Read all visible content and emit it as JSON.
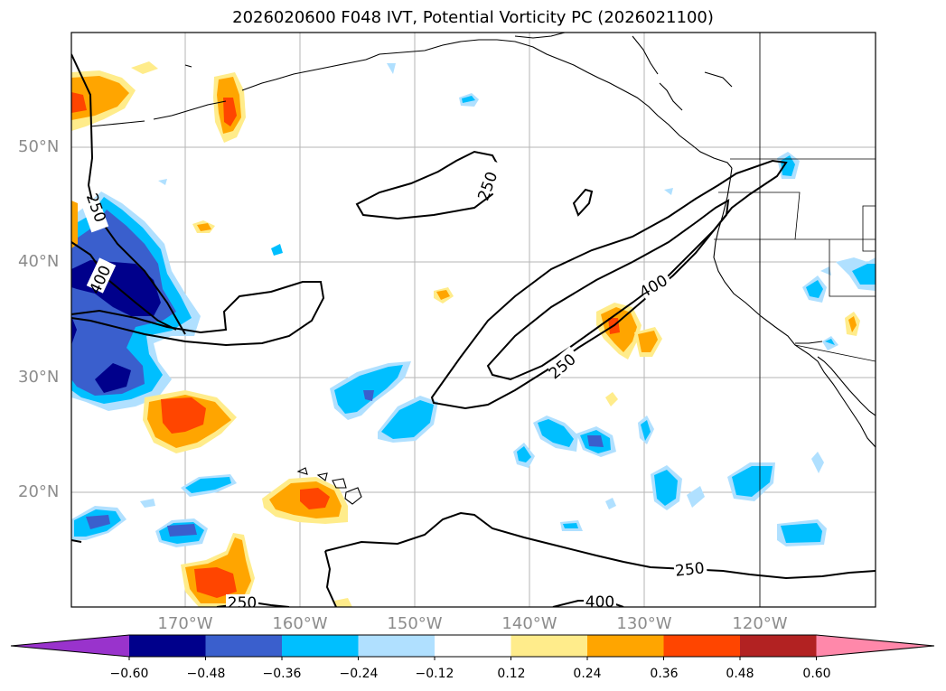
{
  "title": "2026020600 F048 IVT, Potential Vorticity PC (2026021100)",
  "lat_labels": [
    "50°N",
    "40°N",
    "30°N",
    "20°N"
  ],
  "lon_labels": [
    "170°W",
    "160°W",
    "150°W",
    "140°W",
    "130°W",
    "120°W"
  ],
  "contour_labels": [
    "250",
    "250",
    "400",
    "400",
    "250",
    "250",
    "250",
    "400"
  ],
  "colorbar": {
    "ticks": [
      "−0.60",
      "−0.48",
      "−0.36",
      "−0.24",
      "−0.12",
      "0.12",
      "0.24",
      "0.36",
      "0.48",
      "0.60"
    ],
    "colors": [
      "#9933cc",
      "#00008b",
      "#3a5fcd",
      "#00bfff",
      "#b0e0ff",
      "#ffffff",
      "#ffec8b",
      "#ffa500",
      "#ff4500",
      "#b22222",
      "#ff88aa"
    ]
  }
}
